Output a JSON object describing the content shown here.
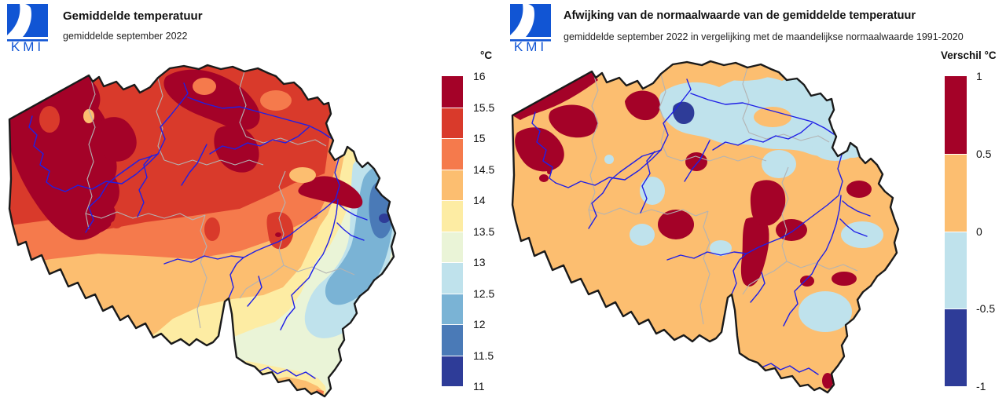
{
  "page": {
    "background": "#ffffff",
    "region": "Belgium"
  },
  "palette": {
    "p0": "#a40228",
    "p1": "#d93a2b",
    "p2": "#f57a4c",
    "p3": "#fcbe70",
    "p4": "#fdeca3",
    "p5": "#eaf4d7",
    "p6": "#bfe2ec",
    "p7": "#7ab3d5",
    "p8": "#4a7ab7",
    "p9": "#2e3c98"
  },
  "map_style": {
    "country_border": "#1a1a1a",
    "province_border": "#b3b3b3",
    "river": "#1f1fe6",
    "logo_blue": "#1155d4"
  },
  "left_panel": {
    "logo_text": "KMI",
    "title": "Gemiddelde temperatuur",
    "subtitle": "gemiddelde september 2022",
    "legend": {
      "title": "°C",
      "labels": [
        "16",
        "15.5",
        "15",
        "14.5",
        "14",
        "13.5",
        "13",
        "12.5",
        "12",
        "11.5",
        "11"
      ],
      "colors": [
        "#a40228",
        "#d93a2b",
        "#f57a4c",
        "#fcbe70",
        "#fdeca3",
        "#eaf4d7",
        "#bfe2ec",
        "#7ab3d5",
        "#4a7ab7",
        "#2e3c98"
      ],
      "range_min": 11,
      "range_max": 16,
      "step": 0.5
    },
    "reading_notes": "Warmest (15.5-16 °C) in the west/northwest, around 15 °C in the centre, coolest (11-12.5 °C) in the High Fens and south-east Ardennes"
  },
  "right_panel": {
    "logo_text": "KMI",
    "title": "Afwijking van de normaalwaarde van de gemiddelde temperatuur",
    "subtitle": "gemiddelde september 2022 in vergelijking met de maandelijkse normaalwaarde 1991-2020",
    "legend": {
      "title": "Verschil °C",
      "labels": [
        "1",
        "0.5",
        "0",
        "-0.5",
        "-1"
      ],
      "colors": [
        "#a40228",
        "#fcbe70",
        "#bfe2ec",
        "#2e3c98"
      ],
      "range_min": -1,
      "range_max": 1,
      "step": 0.5
    },
    "reading_notes": "Mostly 0 to +0.5 °C anomaly, patches above +0.5 °C along the coast and Meuse valley, slightly negative in the Kempen and scattered areas, one spot below -0.5 °C east of Antwerp"
  }
}
